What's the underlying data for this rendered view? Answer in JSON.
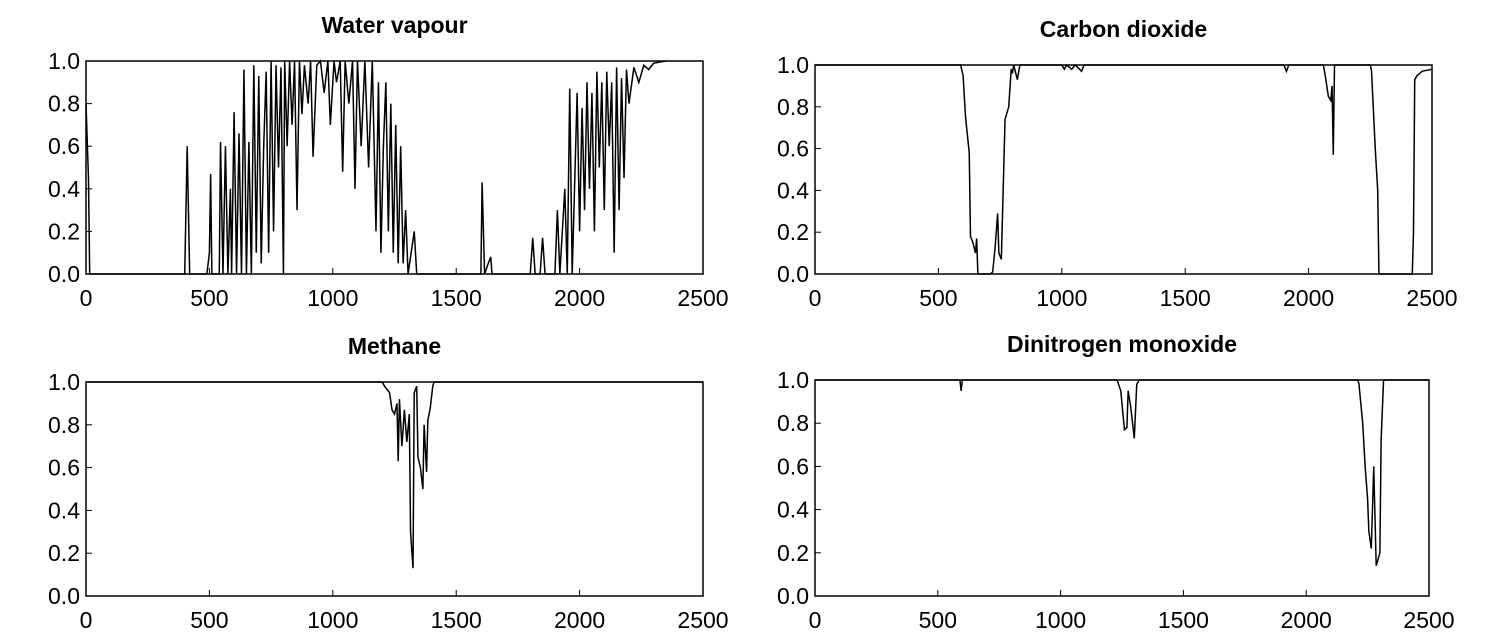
{
  "chart_data": [
    {
      "type": "line",
      "title": "Water vapour",
      "color": "#000000",
      "x": [
        0,
        10,
        15,
        400,
        410,
        420,
        490,
        500,
        505,
        510,
        540,
        545,
        555,
        565,
        575,
        585,
        590,
        600,
        610,
        620,
        630,
        640,
        650,
        660,
        670,
        680,
        690,
        700,
        710,
        720,
        730,
        740,
        750,
        760,
        770,
        780,
        790,
        800,
        805,
        815,
        825,
        835,
        845,
        855,
        865,
        875,
        885,
        900,
        910,
        920,
        935,
        950,
        965,
        980,
        990,
        1005,
        1015,
        1030,
        1040,
        1050,
        1065,
        1080,
        1090,
        1100,
        1115,
        1130,
        1145,
        1160,
        1175,
        1185,
        1195,
        1205,
        1215,
        1225,
        1235,
        1245,
        1255,
        1265,
        1275,
        1285,
        1295,
        1305,
        1330,
        1340,
        1600,
        1605,
        1615,
        1630,
        1640,
        1645,
        1800,
        1810,
        1820,
        1840,
        1850,
        1860,
        1900,
        1910,
        1920,
        1940,
        1950,
        1960,
        1970,
        1990,
        2000,
        2010,
        2020,
        2030,
        2040,
        2050,
        2060,
        2070,
        2080,
        2090,
        2100,
        2110,
        2120,
        2130,
        2140,
        2150,
        2160,
        2170,
        2180,
        2190,
        2200,
        2220,
        2240,
        2260,
        2280,
        2300,
        2350
      ],
      "values": [
        0.8,
        0.45,
        0,
        0,
        0.6,
        0,
        0,
        0.1,
        0.47,
        0,
        0,
        0.62,
        0,
        0.6,
        0,
        0.4,
        0,
        0.76,
        0,
        0.66,
        0,
        0.96,
        0,
        0.62,
        0,
        0.98,
        0.1,
        0.93,
        0.05,
        0.6,
        0.95,
        0.1,
        1.0,
        0.2,
        0.98,
        0.5,
        0.97,
        0,
        1.0,
        0.6,
        1.0,
        0.7,
        1.0,
        0.3,
        1.0,
        0.75,
        0.98,
        0.8,
        1.0,
        0.55,
        0.98,
        1.0,
        0.85,
        1.0,
        0.7,
        1.0,
        0.9,
        1.0,
        0.48,
        1.0,
        0.8,
        1.0,
        0.4,
        1.0,
        0.6,
        1.0,
        0.5,
        1.0,
        0.2,
        0.9,
        0.1,
        0.6,
        0.9,
        0.2,
        0.8,
        0.1,
        0.7,
        0.05,
        0.6,
        0.05,
        0.3,
        0,
        0.2,
        0,
        0,
        0.43,
        0,
        0.05,
        0.08,
        0,
        0,
        0.17,
        0,
        0,
        0.17,
        0,
        0,
        0.3,
        0,
        0.4,
        0,
        0.87,
        0,
        0.85,
        0.2,
        0.78,
        0.3,
        0.9,
        0.4,
        0.85,
        0.2,
        0.95,
        0.5,
        0.9,
        0.3,
        0.95,
        0.6,
        0.9,
        0.1,
        0.97,
        0.3,
        0.92,
        0.45,
        0.96,
        0.8,
        0.97,
        0.9,
        0.98,
        0.96,
        0.99,
        1.0
      ],
      "xlim": [
        0,
        2500
      ],
      "xticks": [
        0,
        500,
        1000,
        1500,
        2000,
        2500
      ],
      "ylim": [
        0,
        1
      ],
      "yticks": [
        {
          "value": 0,
          "label": "0.0"
        },
        {
          "value": 0.2,
          "label": "0.2"
        },
        {
          "value": 0.4,
          "label": "0.4"
        },
        {
          "value": 0.6,
          "label": "0.6"
        },
        {
          "value": 0.8,
          "label": "0.8"
        },
        {
          "value": 1,
          "label": "1.0"
        }
      ]
    },
    {
      "type": "line",
      "title": "Carbon dioxide",
      "color": "#000000",
      "x": [
        0,
        590,
        600,
        610,
        625,
        630,
        640,
        650,
        655,
        660,
        680,
        710,
        720,
        730,
        740,
        745,
        755,
        770,
        785,
        795,
        800,
        805,
        820,
        830,
        1000,
        1010,
        1020,
        1040,
        1055,
        1080,
        1090,
        1900,
        1910,
        1920,
        2060,
        2070,
        2080,
        2090,
        2095,
        2100,
        2105,
        2250,
        2255,
        2270,
        2280,
        2285,
        2420,
        2425,
        2430,
        2440,
        2460,
        2500
      ],
      "values": [
        1,
        1,
        0.95,
        0.75,
        0.58,
        0.18,
        0.15,
        0.1,
        0.17,
        0,
        0,
        0,
        0.01,
        0.13,
        0.29,
        0.1,
        0.07,
        0.74,
        0.8,
        0.98,
        0.96,
        1.0,
        0.93,
        1.0,
        1.0,
        0.98,
        1.0,
        0.98,
        1.0,
        0.97,
        1.0,
        1.0,
        0.97,
        1.0,
        1.0,
        0.93,
        0.85,
        0.83,
        0.9,
        0.57,
        1.0,
        1.0,
        0.97,
        0.6,
        0.4,
        0,
        0,
        0.2,
        0.93,
        0.95,
        0.97,
        0.98
      ],
      "xlim": [
        0,
        2500
      ],
      "xticks": [
        0,
        500,
        1000,
        1500,
        2000,
        2500
      ],
      "ylim": [
        0,
        1
      ],
      "yticks": [
        {
          "value": 0,
          "label": "0.0"
        },
        {
          "value": 0.2,
          "label": "0.2"
        },
        {
          "value": 0.4,
          "label": "0.4"
        },
        {
          "value": 0.6,
          "label": "0.6"
        },
        {
          "value": 0.8,
          "label": "0.8"
        },
        {
          "value": 1,
          "label": "1.0"
        }
      ]
    },
    {
      "type": "line",
      "title": "Methane",
      "color": "#000000",
      "x": [
        0,
        1200,
        1210,
        1230,
        1240,
        1250,
        1260,
        1265,
        1270,
        1280,
        1290,
        1300,
        1310,
        1315,
        1325,
        1330,
        1340,
        1345,
        1355,
        1365,
        1370,
        1380,
        1385,
        1395,
        1405,
        1410,
        2500
      ],
      "values": [
        1,
        1,
        0.98,
        0.95,
        0.87,
        0.85,
        0.9,
        0.63,
        0.92,
        0.7,
        0.87,
        0.72,
        0.85,
        0.3,
        0.13,
        0.95,
        0.98,
        0.65,
        0.6,
        0.5,
        0.8,
        0.58,
        0.82,
        0.88,
        0.98,
        1,
        1
      ],
      "xlim": [
        0,
        2500
      ],
      "xticks": [
        0,
        500,
        1000,
        1500,
        2000,
        2500
      ],
      "ylim": [
        0,
        1
      ],
      "yticks": [
        {
          "value": 0,
          "label": "0.0"
        },
        {
          "value": 0.2,
          "label": "0.2"
        },
        {
          "value": 0.4,
          "label": "0.4"
        },
        {
          "value": 0.6,
          "label": "0.6"
        },
        {
          "value": 0.8,
          "label": "0.8"
        },
        {
          "value": 1,
          "label": "1.0"
        }
      ]
    },
    {
      "type": "line",
      "title": "Dinitrogen monoxide",
      "color": "#000000",
      "x": [
        0,
        590,
        595,
        600,
        1230,
        1245,
        1260,
        1270,
        1275,
        1285,
        1300,
        1310,
        1320,
        2210,
        2215,
        2230,
        2240,
        2250,
        2255,
        2265,
        2275,
        2285,
        2300,
        2305,
        2315,
        2500
      ],
      "values": [
        1,
        1,
        0.95,
        1.0,
        1,
        0.95,
        0.77,
        0.78,
        0.95,
        0.88,
        0.73,
        0.98,
        1,
        1,
        0.98,
        0.8,
        0.6,
        0.45,
        0.3,
        0.22,
        0.6,
        0.14,
        0.2,
        0.72,
        1.0,
        1
      ],
      "xlim": [
        0,
        2500
      ],
      "xticks": [
        0,
        500,
        1000,
        1500,
        2000,
        2500
      ],
      "ylim": [
        0,
        1
      ],
      "yticks": [
        {
          "value": 0,
          "label": "0.0"
        },
        {
          "value": 0.2,
          "label": "0.2"
        },
        {
          "value": 0.4,
          "label": "0.4"
        },
        {
          "value": 0.6,
          "label": "0.6"
        },
        {
          "value": 0.8,
          "label": "0.8"
        },
        {
          "value": 1,
          "label": "1.0"
        }
      ]
    }
  ]
}
